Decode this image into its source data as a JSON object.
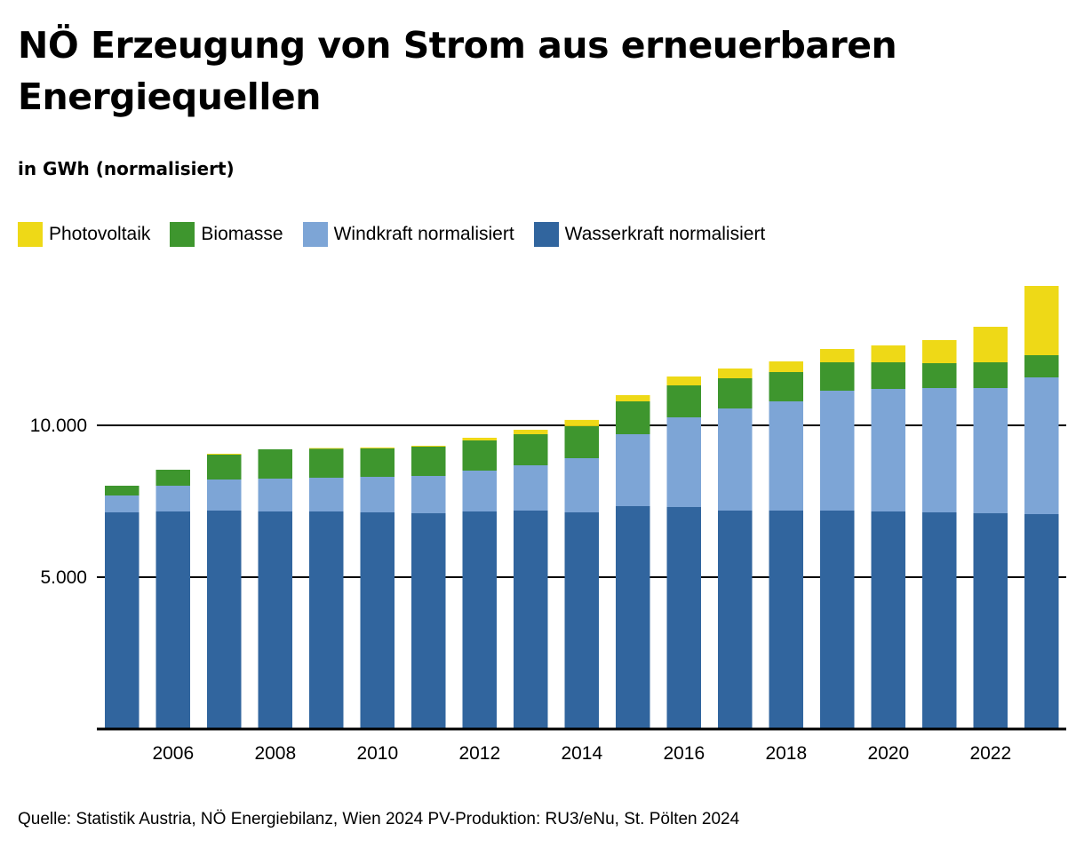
{
  "chart_data": {
    "type": "bar",
    "stacked": true,
    "title": "NÖ Erzeugung von Strom aus erneuerbaren Energiequellen",
    "subtitle": "in GWh (normalisiert)",
    "xlabel": "",
    "ylabel": "",
    "ylim": [
      0,
      15000
    ],
    "yticks": [
      5000,
      10000
    ],
    "ytick_labels": [
      "5.000",
      "10.000"
    ],
    "grid": true,
    "legend_position": "top-left",
    "categories": [
      "2005",
      "2006",
      "2007",
      "2008",
      "2009",
      "2010",
      "2011",
      "2012",
      "2013",
      "2014",
      "2015",
      "2016",
      "2017",
      "2018",
      "2019",
      "2020",
      "2021",
      "2022",
      "2023"
    ],
    "xtick_labels": [
      "2006",
      "2008",
      "2010",
      "2012",
      "2014",
      "2016",
      "2018",
      "2020",
      "2022"
    ],
    "series": [
      {
        "name": "Wasserkraft normalisiert",
        "color": "#31659e",
        "values": [
          7135,
          7164,
          7193,
          7164,
          7164,
          7135,
          7105,
          7164,
          7193,
          7135,
          7339,
          7310,
          7193,
          7193,
          7193,
          7164,
          7135,
          7105,
          7076
        ]
      },
      {
        "name": "Windkraft normalisiert",
        "color": "#7da5d6",
        "values": [
          556,
          848,
          1023,
          1082,
          1111,
          1170,
          1228,
          1345,
          1491,
          1784,
          2368,
          2953,
          3363,
          3597,
          3947,
          4035,
          4094,
          4123,
          4503
        ]
      },
      {
        "name": "Biomasse",
        "color": "#3e962e",
        "values": [
          322,
          526,
          819,
          965,
          965,
          936,
          965,
          994,
          1023,
          1053,
          1082,
          1053,
          994,
          965,
          936,
          877,
          819,
          848,
          731
        ]
      },
      {
        "name": "Photovoltaik",
        "color": "#eed917",
        "values": [
          0,
          0,
          30,
          0,
          10,
          30,
          30,
          88,
          146,
          205,
          205,
          292,
          322,
          351,
          439,
          556,
          760,
          1170,
          2281
        ]
      }
    ],
    "legend_order": [
      "Photovoltaik",
      "Biomasse",
      "Windkraft normalisiert",
      "Wasserkraft normalisiert"
    ],
    "source": "Quelle: Statistik Austria, NÖ Energiebilanz, Wien 2024 PV-Produktion: RU3/eNu, St. Pölten 2024"
  },
  "legend": [
    {
      "label": "Photovoltaik",
      "color": "#eed917"
    },
    {
      "label": "Biomasse",
      "color": "#3e962e"
    },
    {
      "label": "Windkraft normalisiert",
      "color": "#7da5d6"
    },
    {
      "label": "Wasserkraft normalisiert",
      "color": "#31659e"
    }
  ]
}
